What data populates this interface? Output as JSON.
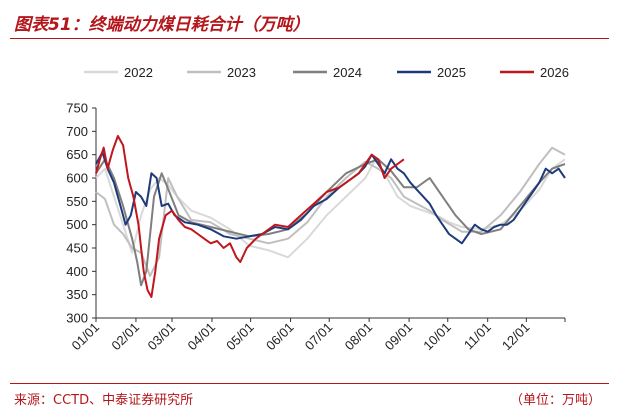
{
  "header": {
    "title": "图表51：终端动力煤日耗合计（万吨）"
  },
  "footer": {
    "source": "来源：CCTD、中泰证券研究所",
    "unit": "（单位：万吨）"
  },
  "colors": {
    "2022": "#d9d9d9",
    "2023": "#bfbfbf",
    "2024": "#7f7f7f",
    "2025": "#1f3a7a",
    "2026": "#c0161d",
    "accent": "#b4161b"
  },
  "chart_data": {
    "type": "line",
    "xlabel": "",
    "ylabel": "",
    "x_ticks": [
      "01/01",
      "02/01",
      "03/01",
      "04/01",
      "05/01",
      "06/01",
      "07/01",
      "08/01",
      "09/01",
      "10/01",
      "11/01",
      "12/01"
    ],
    "x_tick_days": [
      1,
      32,
      60,
      91,
      121,
      152,
      182,
      213,
      244,
      274,
      305,
      335
    ],
    "ylim": [
      300,
      750
    ],
    "y_ticks": [
      300,
      350,
      400,
      450,
      500,
      550,
      600,
      650,
      700,
      750
    ],
    "legend_position": "top",
    "grid": false,
    "series": [
      {
        "name": "2022",
        "key": "2022",
        "points": [
          [
            1,
            600
          ],
          [
            8,
            620
          ],
          [
            15,
            560
          ],
          [
            22,
            500
          ],
          [
            29,
            440
          ],
          [
            36,
            520
          ],
          [
            43,
            575
          ],
          [
            50,
            600
          ],
          [
            57,
            585
          ],
          [
            64,
            560
          ],
          [
            75,
            530
          ],
          [
            90,
            515
          ],
          [
            105,
            490
          ],
          [
            120,
            455
          ],
          [
            135,
            445
          ],
          [
            150,
            430
          ],
          [
            165,
            470
          ],
          [
            180,
            520
          ],
          [
            195,
            560
          ],
          [
            210,
            600
          ],
          [
            218,
            640
          ],
          [
            225,
            610
          ],
          [
            235,
            560
          ],
          [
            245,
            540
          ],
          [
            255,
            530
          ],
          [
            265,
            520
          ],
          [
            275,
            505
          ],
          [
            285,
            495
          ],
          [
            300,
            490
          ],
          [
            315,
            500
          ],
          [
            330,
            530
          ],
          [
            345,
            575
          ],
          [
            355,
            620
          ],
          [
            365,
            640
          ]
        ]
      },
      {
        "name": "2023",
        "key": "2023",
        "points": [
          [
            1,
            570
          ],
          [
            8,
            555
          ],
          [
            15,
            500
          ],
          [
            22,
            480
          ],
          [
            29,
            450
          ],
          [
            36,
            440
          ],
          [
            43,
            390
          ],
          [
            50,
            430
          ],
          [
            57,
            600
          ],
          [
            64,
            560
          ],
          [
            75,
            510
          ],
          [
            90,
            505
          ],
          [
            105,
            480
          ],
          [
            120,
            470
          ],
          [
            135,
            460
          ],
          [
            150,
            470
          ],
          [
            165,
            505
          ],
          [
            180,
            560
          ],
          [
            195,
            600
          ],
          [
            210,
            635
          ],
          [
            220,
            620
          ],
          [
            230,
            600
          ],
          [
            240,
            560
          ],
          [
            250,
            545
          ],
          [
            260,
            530
          ],
          [
            270,
            510
          ],
          [
            285,
            485
          ],
          [
            300,
            485
          ],
          [
            315,
            520
          ],
          [
            330,
            570
          ],
          [
            345,
            630
          ],
          [
            355,
            665
          ],
          [
            365,
            650
          ]
        ]
      },
      {
        "name": "2024",
        "key": "2024",
        "points": [
          [
            1,
            610
          ],
          [
            8,
            640
          ],
          [
            15,
            600
          ],
          [
            22,
            540
          ],
          [
            29,
            470
          ],
          [
            33,
            420
          ],
          [
            36,
            370
          ],
          [
            40,
            400
          ],
          [
            46,
            560
          ],
          [
            52,
            610
          ],
          [
            58,
            570
          ],
          [
            65,
            520
          ],
          [
            75,
            505
          ],
          [
            90,
            495
          ],
          [
            105,
            485
          ],
          [
            120,
            475
          ],
          [
            135,
            480
          ],
          [
            150,
            490
          ],
          [
            165,
            525
          ],
          [
            180,
            570
          ],
          [
            195,
            610
          ],
          [
            210,
            630
          ],
          [
            220,
            640
          ],
          [
            230,
            615
          ],
          [
            240,
            580
          ],
          [
            250,
            580
          ],
          [
            260,
            600
          ],
          [
            270,
            560
          ],
          [
            280,
            520
          ],
          [
            290,
            490
          ],
          [
            300,
            480
          ],
          [
            315,
            490
          ],
          [
            330,
            540
          ],
          [
            345,
            590
          ],
          [
            355,
            620
          ],
          [
            365,
            630
          ]
        ]
      },
      {
        "name": "2025",
        "key": "2025",
        "points": [
          [
            1,
            630
          ],
          [
            6,
            655
          ],
          [
            10,
            620
          ],
          [
            15,
            590
          ],
          [
            20,
            540
          ],
          [
            24,
            500
          ],
          [
            28,
            520
          ],
          [
            32,
            570
          ],
          [
            36,
            560
          ],
          [
            40,
            540
          ],
          [
            44,
            610
          ],
          [
            48,
            600
          ],
          [
            52,
            540
          ],
          [
            57,
            545
          ],
          [
            62,
            520
          ],
          [
            70,
            505
          ],
          [
            80,
            500
          ],
          [
            90,
            490
          ],
          [
            100,
            475
          ],
          [
            110,
            470
          ],
          [
            120,
            475
          ],
          [
            130,
            480
          ],
          [
            140,
            495
          ],
          [
            150,
            490
          ],
          [
            160,
            510
          ],
          [
            170,
            540
          ],
          [
            180,
            555
          ],
          [
            190,
            580
          ],
          [
            200,
            600
          ],
          [
            205,
            610
          ],
          [
            210,
            625
          ],
          [
            215,
            650
          ],
          [
            220,
            630
          ],
          [
            225,
            610
          ],
          [
            230,
            640
          ],
          [
            235,
            620
          ],
          [
            240,
            610
          ],
          [
            245,
            590
          ],
          [
            250,
            575
          ],
          [
            255,
            560
          ],
          [
            260,
            545
          ],
          [
            265,
            520
          ],
          [
            270,
            500
          ],
          [
            275,
            480
          ],
          [
            280,
            470
          ],
          [
            285,
            460
          ],
          [
            290,
            480
          ],
          [
            295,
            500
          ],
          [
            300,
            490
          ],
          [
            305,
            485
          ],
          [
            310,
            495
          ],
          [
            315,
            500
          ],
          [
            320,
            500
          ],
          [
            325,
            510
          ],
          [
            330,
            530
          ],
          [
            335,
            550
          ],
          [
            340,
            570
          ],
          [
            345,
            590
          ],
          [
            350,
            620
          ],
          [
            355,
            610
          ],
          [
            360,
            620
          ],
          [
            365,
            600
          ]
        ]
      },
      {
        "name": "2026",
        "key": "2026",
        "points": [
          [
            1,
            610
          ],
          [
            4,
            640
          ],
          [
            7,
            665
          ],
          [
            10,
            620
          ],
          [
            14,
            660
          ],
          [
            18,
            690
          ],
          [
            22,
            670
          ],
          [
            26,
            600
          ],
          [
            30,
            560
          ],
          [
            34,
            500
          ],
          [
            38,
            400
          ],
          [
            41,
            360
          ],
          [
            44,
            345
          ],
          [
            47,
            400
          ],
          [
            50,
            470
          ],
          [
            55,
            520
          ],
          [
            60,
            530
          ],
          [
            65,
            510
          ],
          [
            70,
            495
          ],
          [
            75,
            490
          ],
          [
            80,
            480
          ],
          [
            85,
            470
          ],
          [
            90,
            460
          ],
          [
            95,
            465
          ],
          [
            100,
            450
          ],
          [
            105,
            460
          ],
          [
            110,
            430
          ],
          [
            113,
            420
          ],
          [
            118,
            450
          ],
          [
            125,
            470
          ],
          [
            130,
            480
          ],
          [
            140,
            500
          ],
          [
            150,
            495
          ],
          [
            160,
            520
          ],
          [
            170,
            545
          ],
          [
            180,
            570
          ],
          [
            190,
            580
          ],
          [
            200,
            600
          ],
          [
            205,
            610
          ],
          [
            210,
            630
          ],
          [
            215,
            650
          ],
          [
            220,
            640
          ],
          [
            225,
            600
          ],
          [
            230,
            620
          ],
          [
            235,
            630
          ],
          [
            240,
            640
          ]
        ]
      }
    ]
  }
}
